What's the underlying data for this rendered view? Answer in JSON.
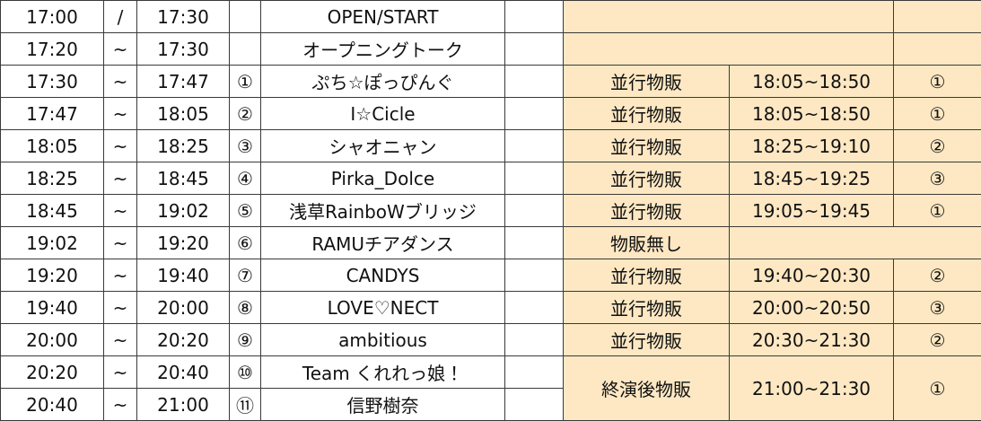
{
  "table": {
    "rows": [
      {
        "start": "17:00",
        "sep": "/",
        "end": "17:30",
        "name": "OPEN/START"
      },
      {
        "start": "17:20",
        "sep": "~",
        "end": "17:30",
        "name": "オープニングトーク"
      },
      {
        "start": "17:30",
        "sep": "~",
        "end": "17:47",
        "num": "①",
        "name": "ぷち☆ぽっぴんぐ",
        "merch": "並行物販",
        "merch_time": "18:05~18:50",
        "booth": "①"
      },
      {
        "start": "17:47",
        "sep": "~",
        "end": "18:05",
        "num": "②",
        "name": "I☆Cicle",
        "merch": "並行物販",
        "merch_time": "18:05~18:50",
        "booth": "①"
      },
      {
        "start": "18:05",
        "sep": "~",
        "end": "18:25",
        "num": "③",
        "name": "シャオニャン",
        "merch": "並行物販",
        "merch_time": "18:25~19:10",
        "booth": "②"
      },
      {
        "start": "18:25",
        "sep": "~",
        "end": "18:45",
        "num": "④",
        "name": "Pirka_Dolce",
        "merch": "並行物販",
        "merch_time": "18:45~19:25",
        "booth": "③"
      },
      {
        "start": "18:45",
        "sep": "~",
        "end": "19:02",
        "num": "⑤",
        "name": "浅草RainboWブリッジ",
        "merch": "並行物販",
        "merch_time": "19:05~19:45",
        "booth": "①"
      },
      {
        "start": "19:02",
        "sep": "~",
        "end": "19:20",
        "num": "⑥",
        "name": "RAMUチアダンス",
        "merch": "物販無し"
      },
      {
        "start": "19:20",
        "sep": "~",
        "end": "19:40",
        "num": "⑦",
        "name": "CANDYS",
        "merch": "並行物販",
        "merch_time": "19:40~20:30",
        "booth": "②"
      },
      {
        "start": "19:40",
        "sep": "~",
        "end": "20:00",
        "num": "⑧",
        "name": "LOVE♡NECT",
        "merch": "並行物販",
        "merch_time": "20:00~20:50",
        "booth": "③"
      },
      {
        "start": "20:00",
        "sep": "~",
        "end": "20:20",
        "num": "⑨",
        "name": "ambitious",
        "merch": "並行物販",
        "merch_time": "20:30~21:30",
        "booth": "②"
      },
      {
        "start": "20:20",
        "sep": "~",
        "end": "20:40",
        "num": "⑩",
        "name": "Team くれれっ娘！",
        "merch": "終演後物販",
        "merch_time": "21:00~21:30",
        "booth": "①"
      },
      {
        "start": "20:40",
        "sep": "~",
        "end": "21:00",
        "num": "⑪",
        "name": "信野樹奈"
      }
    ]
  }
}
